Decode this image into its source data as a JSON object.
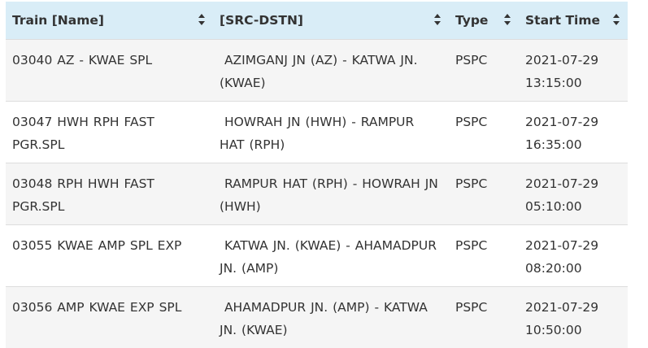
{
  "table": {
    "header": [
      "Train [Name]",
      "[SRC-DSTN]",
      "Type",
      "Start Time"
    ],
    "rows": [
      [
        "03040 AZ - KWAE SPL",
        " AZIMGANJ JN (AZ) - KATWA JN. (KWAE)",
        "PSPC",
        "2021-07-29 13:15:00"
      ],
      [
        "03047 HWH RPH FAST PGR.SPL",
        " HOWRAH JN (HWH) - RAMPUR HAT (RPH)",
        "PSPC",
        "2021-07-29 16:35:00"
      ],
      [
        "03048 RPH HWH FAST PGR.SPL",
        " RAMPUR HAT (RPH) - HOWRAH JN (HWH)",
        "PSPC",
        "2021-07-29 05:10:00"
      ],
      [
        "03055 KWAE AMP SPL EXP",
        " KATWA JN. (KWAE) - AHAMADPUR JN. (AMP)",
        "PSPC",
        "2021-07-29 08:20:00"
      ],
      [
        "03056 AMP KWAE EXP SPL",
        " AHAMADPUR JN. (AMP) - KATWA JN. (KWAE)",
        "PSPC",
        "2021-07-29 10:50:00"
      ]
    ]
  }
}
